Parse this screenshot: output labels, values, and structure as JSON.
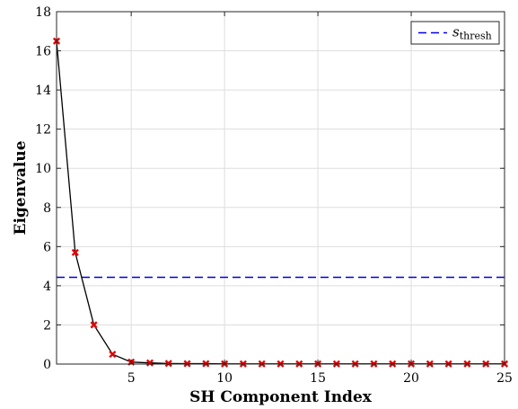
{
  "chart_data": {
    "type": "line",
    "xlabel": "SH Component Index",
    "ylabel": "Eigenvalue",
    "xlim": [
      1,
      25
    ],
    "ylim": [
      0,
      18
    ],
    "x_ticks": [
      5,
      10,
      15,
      20,
      25
    ],
    "y_ticks": [
      0,
      2,
      4,
      6,
      8,
      10,
      12,
      14,
      16,
      18
    ],
    "grid": true,
    "legend_position": "top-right",
    "series": [
      {
        "marker": "x",
        "line_color": "#000000",
        "marker_color": "#e00000",
        "x": [
          1,
          2,
          3,
          4,
          5,
          6,
          7,
          8,
          9,
          10,
          11,
          12,
          13,
          14,
          15,
          16,
          17,
          18,
          19,
          20,
          21,
          22,
          23,
          24,
          25
        ],
        "values": [
          16.5,
          5.7,
          2.0,
          0.5,
          0.1,
          0.06,
          0.03,
          0.02,
          0.02,
          0.01,
          0.01,
          0.01,
          0.01,
          0.01,
          0.01,
          0.01,
          0.01,
          0.01,
          0.01,
          0.01,
          0.01,
          0.01,
          0.01,
          0.01,
          0.01
        ]
      },
      {
        "name": "s_thresh",
        "name_main": "s",
        "name_sub": "thresh",
        "style": "dashed",
        "line_color": "#0000e6",
        "value": 4.43
      }
    ]
  }
}
